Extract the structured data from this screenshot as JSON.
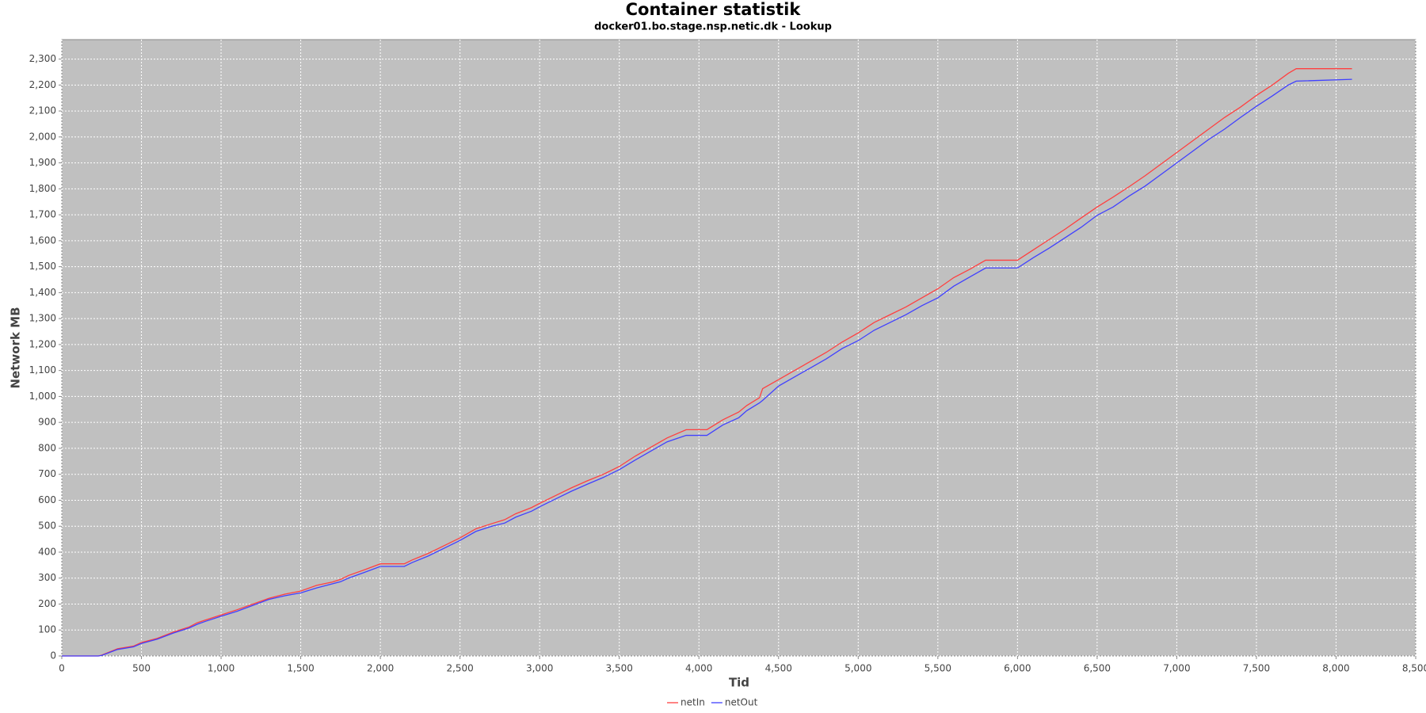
{
  "chart_data": {
    "type": "line",
    "title": "Container statistik",
    "subtitle": "docker01.bo.stage.nsp.netic.dk - Lookup",
    "x_label": "Tid",
    "y_label": "Network MB",
    "x": [
      0,
      230,
      250,
      350,
      450,
      500,
      600,
      700,
      800,
      850,
      900,
      1000,
      1100,
      1200,
      1300,
      1400,
      1500,
      1600,
      1700,
      1750,
      1800,
      1900,
      2000,
      2150,
      2200,
      2300,
      2400,
      2500,
      2600,
      2700,
      2780,
      2850,
      2950,
      3000,
      3100,
      3200,
      3300,
      3400,
      3500,
      3600,
      3700,
      3800,
      3920,
      4050,
      4150,
      4250,
      4300,
      4380,
      4400,
      4500,
      4600,
      4700,
      4800,
      4900,
      5000,
      5100,
      5200,
      5300,
      5400,
      5500,
      5600,
      5700,
      5800,
      6000,
      6100,
      6200,
      6300,
      6400,
      6500,
      6600,
      6700,
      6800,
      6900,
      7000,
      7100,
      7200,
      7300,
      7400,
      7500,
      7600,
      7700,
      7750,
      8100
    ],
    "series": [
      {
        "name": "netIn",
        "color": "#ff4040",
        "values": [
          0,
          0,
          3,
          28,
          38,
          52,
          68,
          92,
          112,
          128,
          138,
          158,
          178,
          200,
          222,
          238,
          250,
          272,
          285,
          295,
          310,
          332,
          355,
          355,
          370,
          395,
          425,
          455,
          490,
          510,
          525,
          548,
          572,
          588,
          618,
          648,
          675,
          700,
          730,
          770,
          805,
          840,
          872,
          872,
          910,
          940,
          965,
          995,
          1030,
          1065,
          1100,
          1135,
          1170,
          1210,
          1245,
          1285,
          1315,
          1345,
          1380,
          1415,
          1458,
          1490,
          1525,
          1525,
          1565,
          1605,
          1645,
          1688,
          1730,
          1768,
          1808,
          1850,
          1895,
          1940,
          1985,
          2030,
          2075,
          2115,
          2160,
          2200,
          2245,
          2263,
          2263
        ]
      },
      {
        "name": "netOut",
        "color": "#4040ff",
        "values": [
          0,
          0,
          2,
          25,
          35,
          48,
          65,
          88,
          108,
          122,
          133,
          153,
          172,
          195,
          218,
          232,
          243,
          262,
          278,
          286,
          300,
          322,
          345,
          345,
          360,
          385,
          415,
          445,
          480,
          500,
          512,
          535,
          558,
          575,
          605,
          635,
          662,
          688,
          718,
          755,
          790,
          825,
          850,
          850,
          890,
          918,
          945,
          975,
          985,
          1040,
          1075,
          1110,
          1145,
          1185,
          1215,
          1255,
          1285,
          1315,
          1350,
          1380,
          1425,
          1460,
          1495,
          1495,
          1535,
          1572,
          1612,
          1652,
          1698,
          1730,
          1772,
          1810,
          1855,
          1900,
          1945,
          1990,
          2030,
          2075,
          2118,
          2158,
          2200,
          2215,
          2222
        ]
      }
    ],
    "xlim": [
      0,
      8500
    ],
    "xticks": [
      0,
      500,
      {
        "value": 1000,
        "label": "1,000"
      },
      {
        "value": 1500,
        "label": "1,500"
      },
      {
        "value": 2000,
        "label": "2,000"
      },
      {
        "value": 2500,
        "label": "2,500"
      },
      {
        "value": 3000,
        "label": "3,000"
      },
      {
        "value": 3500,
        "label": "3,500"
      },
      {
        "value": 4000,
        "label": "4,000"
      },
      {
        "value": 4500,
        "label": "4,500"
      },
      {
        "value": 5000,
        "label": "5,000"
      },
      {
        "value": 5500,
        "label": "5,500"
      },
      {
        "value": 6000,
        "label": "6,000"
      },
      {
        "value": 6500,
        "label": "6,500"
      },
      {
        "value": 7000,
        "label": "7,000"
      },
      {
        "value": 7500,
        "label": "7,500"
      },
      {
        "value": 8000,
        "label": "8,000"
      },
      {
        "value": 8500,
        "label": "8,500"
      }
    ],
    "ylim": [
      0,
      2375
    ],
    "yticks": [
      0,
      100,
      200,
      300,
      400,
      500,
      600,
      700,
      800,
      900,
      {
        "value": 1000,
        "label": "1,000"
      },
      {
        "value": 1100,
        "label": "1,100"
      },
      {
        "value": 1200,
        "label": "1,200"
      },
      {
        "value": 1300,
        "label": "1,300"
      },
      {
        "value": 1400,
        "label": "1,400"
      },
      {
        "value": 1500,
        "label": "1,500"
      },
      {
        "value": 1600,
        "label": "1,600"
      },
      {
        "value": 1700,
        "label": "1,700"
      },
      {
        "value": 1800,
        "label": "1,800"
      },
      {
        "value": 1900,
        "label": "1,900"
      },
      {
        "value": 2000,
        "label": "2,000"
      },
      {
        "value": 2100,
        "label": "2,100"
      },
      {
        "value": 2200,
        "label": "2,200"
      },
      {
        "value": 2300,
        "label": "2,300"
      }
    ],
    "grid": true,
    "legend": "bottom"
  }
}
